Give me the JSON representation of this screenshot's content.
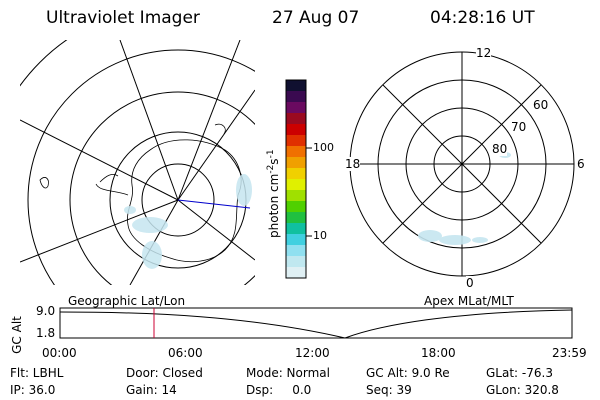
{
  "header": {
    "title": "Ultraviolet Imager",
    "date": "27 Aug 07",
    "time": "04:28:16 UT"
  },
  "colorbar": {
    "label": "photon cm",
    "label_exp": "-2",
    "label_s": "s",
    "label_exp2": "-1",
    "ticks": [
      "100",
      "10"
    ],
    "colors": [
      "#101030",
      "#3a0a50",
      "#6a0a60",
      "#9a0a20",
      "#cc0000",
      "#e03000",
      "#f07000",
      "#f0a000",
      "#f0d000",
      "#e0f000",
      "#a0e000",
      "#50d000",
      "#20c040",
      "#10c0a0",
      "#40d0e0",
      "#90e0f0",
      "#c0e8f0",
      "#e0f0f4"
    ]
  },
  "polar_plot": {
    "mlt_labels": {
      "top": "12",
      "left": "18",
      "right": "6",
      "bottom": "0"
    },
    "lat_labels": [
      "60",
      "70",
      "80"
    ]
  },
  "timeline": {
    "left_title": "Geographic Lat/Lon",
    "right_title": "Apex MLat/MLT",
    "ylabel": "GC Alt",
    "ytick_top": "9.0",
    "ytick_bottom": "1.8",
    "xticks": [
      "00:00",
      "06:00",
      "12:00",
      "18:00",
      "23:59"
    ],
    "marker_color": "#cc0033"
  },
  "info": {
    "row1": {
      "flt": "Flt: LBHL",
      "door": "Door: Closed",
      "mode": "Mode: Normal",
      "gcalt": "GC Alt: 9.0 Re",
      "glat": "GLat: -76.3"
    },
    "row2": {
      "ip": "IP: 36.0",
      "gain": "Gain: 14",
      "dsp": "Dsp:     0.0",
      "seq": "Seq: 39",
      "glon": "GLon: 320.8"
    }
  }
}
